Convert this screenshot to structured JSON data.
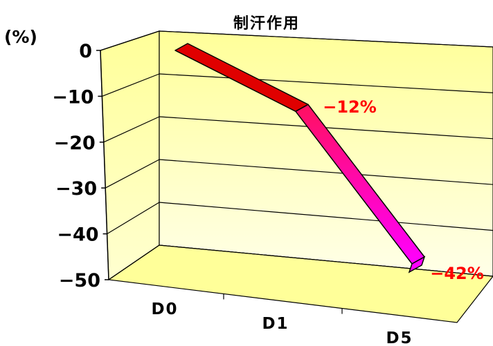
{
  "chart_data": {
    "type": "line",
    "style": "3d-ribbon",
    "title": "制汗作用",
    "ylabel": "(%)",
    "categories": [
      "D0",
      "D1",
      "D5"
    ],
    "series": [
      {
        "values": [
          0,
          -12,
          -42
        ]
      }
    ],
    "data_labels": [
      "",
      "-12%",
      "-42%"
    ],
    "ylim": [
      -50,
      0
    ],
    "yticks": [
      0,
      -10,
      -20,
      -30,
      -40,
      -50
    ],
    "grid": true,
    "legend": "none",
    "colors": {
      "wall_top": "#ffff99",
      "wall_bottom": "#ffffe8",
      "floor": "#ffff99",
      "ribbon_start": "#e00000",
      "ribbon_mid": "#ff1060",
      "ribbon_end": "#ff00ff",
      "data_label": "#ff0000"
    }
  }
}
